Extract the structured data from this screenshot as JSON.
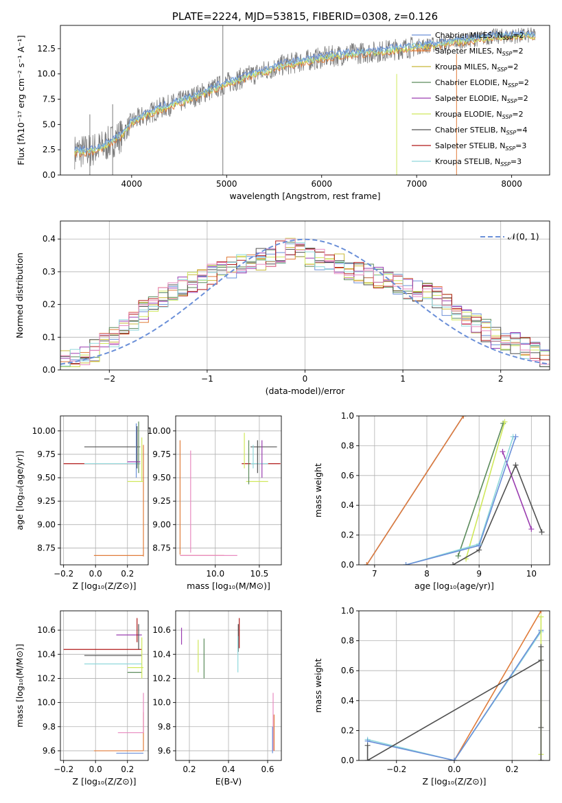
{
  "colors": {
    "chabrier_miles": "#6a8fd8",
    "salpeter_miles": "#e07b39",
    "kroupa_miles": "#c8b838",
    "chabrier_elodie": "#5a8a5a",
    "salpeter_elodie": "#9a3cb0",
    "kroupa_elodie": "#cfe85a",
    "chabrier_stelib": "#505050",
    "salpeter_stelib": "#b01818",
    "kroupa_stelib": "#8fd8dc",
    "pink": "#e88ac0",
    "data": "#7a7a7a"
  },
  "chart_data": [
    {
      "id": "spectrum",
      "type": "line",
      "title": "PLATE=2224, MJD=53815, FIBERID=0308, z=0.126",
      "xlabel": "wavelength [Angstrom, rest frame]",
      "ylabel": "Flux [fλ10⁻¹⁷ erg cm⁻² s⁻¹ A⁻¹]",
      "xlim": [
        3250,
        8400
      ],
      "ylim": [
        0,
        14.8
      ],
      "xticks": [
        4000,
        5000,
        6000,
        7000,
        8000
      ],
      "yticks": [
        0.0,
        2.5,
        5.0,
        7.5,
        10.0,
        12.5
      ],
      "grid": false,
      "legend_position": "top-right",
      "legend": [
        {
          "label": "Chabrier MILES, N",
          "sub": "SSP",
          "post": "=2",
          "color_key": "chabrier_miles"
        },
        {
          "label": "Salpeter MILES, N",
          "sub": "SSP",
          "post": "=2",
          "color_key": "salpeter_miles"
        },
        {
          "label": "Kroupa MILES, N",
          "sub": "SSP",
          "post": "=2",
          "color_key": "kroupa_miles"
        },
        {
          "label": "Chabrier ELODIE, N",
          "sub": "SSP",
          "post": "=2",
          "color_key": "chabrier_elodie"
        },
        {
          "label": "Salpeter ELODIE, N",
          "sub": "SSP",
          "post": "=2",
          "color_key": "salpeter_elodie"
        },
        {
          "label": "Kroupa ELODIE, N",
          "sub": "SSP",
          "post": "=2",
          "color_key": "kroupa_elodie"
        },
        {
          "label": "Chabrier STELIB, N",
          "sub": "SSP",
          "post": "=4",
          "color_key": "chabrier_stelib"
        },
        {
          "label": "Salpeter STELIB, N",
          "sub": "SSP",
          "post": "=3",
          "color_key": "salpeter_stelib"
        },
        {
          "label": "Kroupa STELIB, N",
          "sub": "SSP",
          "post": "=3",
          "color_key": "kroupa_stelib"
        }
      ],
      "continuum": {
        "x": [
          3400,
          3550,
          3700,
          3900,
          4000,
          4100,
          4300,
          4500,
          4800,
          5000,
          5300,
          5600,
          6000,
          6300,
          6600,
          6900,
          7200,
          7500,
          7800,
          8200
        ],
        "y": [
          2.3,
          2.4,
          2.8,
          4.0,
          5.2,
          5.7,
          6.6,
          7.2,
          8.3,
          9.1,
          10.0,
          10.9,
          11.6,
          12.0,
          12.2,
          12.6,
          12.9,
          13.3,
          13.7,
          13.8
        ]
      }
    },
    {
      "id": "residuals",
      "type": "histogram",
      "xlabel": "(data-model)/error",
      "ylabel": "Normed distribution",
      "xlim": [
        -2.5,
        2.5
      ],
      "ylim": [
        0,
        0.455
      ],
      "xticks": [
        -2,
        -1,
        0,
        1,
        2
      ],
      "yticks": [
        0.0,
        0.1,
        0.2,
        0.3,
        0.4
      ],
      "grid": true,
      "legend_position": "top-right",
      "legend": [
        {
          "label": "𝒩(0, 1)",
          "color_key": "chabrier_miles",
          "style": "dashed"
        }
      ],
      "bin_width": 0.1,
      "profile": [
        0.03,
        0.035,
        0.045,
        0.06,
        0.08,
        0.1,
        0.12,
        0.15,
        0.18,
        0.2,
        0.22,
        0.24,
        0.26,
        0.27,
        0.28,
        0.29,
        0.3,
        0.31,
        0.32,
        0.33,
        0.34,
        0.35,
        0.36,
        0.37,
        0.36,
        0.35,
        0.34,
        0.33,
        0.32,
        0.31,
        0.3,
        0.29,
        0.28,
        0.27,
        0.26,
        0.25,
        0.24,
        0.23,
        0.22,
        0.2,
        0.18,
        0.16,
        0.14,
        0.12,
        0.1,
        0.09,
        0.08,
        0.065,
        0.05,
        0.04
      ]
    },
    {
      "id": "age-vs-Z",
      "type": "scatter",
      "xlabel": "Z [log₁₀(Z/Z⊙)]",
      "ylabel": "age  [log₁₀(age/yr)]",
      "xlim": [
        -0.22,
        0.33
      ],
      "ylim": [
        8.57,
        10.16
      ],
      "xticks": [
        -0.2,
        0.0,
        0.2
      ],
      "yticks": [
        8.75,
        9.0,
        9.25,
        9.5,
        9.75,
        10.0
      ],
      "grid": true,
      "segments": [
        {
          "c": "chabrier_stelib",
          "x": [
            -0.07,
            0.28
          ],
          "y": [
            9.83,
            9.83
          ]
        },
        {
          "c": "salpeter_stelib",
          "x": [
            -0.2,
            0.28
          ],
          "y": [
            9.65,
            9.65
          ]
        },
        {
          "c": "kroupa_stelib",
          "x": [
            -0.07,
            0.28
          ],
          "y": [
            9.65,
            9.65
          ]
        },
        {
          "c": "salpeter_miles",
          "x": [
            -0.01,
            0.3
          ],
          "y": [
            8.67,
            8.67
          ]
        },
        {
          "c": "salpeter_miles",
          "x": [
            0.3,
            0.3
          ],
          "y": [
            8.66,
            9.85
          ]
        },
        {
          "c": "kroupa_elodie",
          "x": [
            0.2,
            0.3
          ],
          "y": [
            9.46,
            9.46
          ]
        },
        {
          "c": "chabrier_miles",
          "x": [
            0.255,
            0.255
          ],
          "y": [
            9.5,
            10.08
          ]
        },
        {
          "c": "chabrier_elodie",
          "x": [
            0.27,
            0.27
          ],
          "y": [
            9.55,
            10.1
          ]
        },
        {
          "c": "salpeter_elodie",
          "x": [
            0.2,
            0.28
          ],
          "y": [
            9.67,
            9.67
          ]
        },
        {
          "c": "kroupa_elodie",
          "x": [
            0.29,
            0.29
          ],
          "y": [
            9.46,
            9.93
          ]
        },
        {
          "c": "chabrier_stelib",
          "x": [
            0.26,
            0.26
          ],
          "y": [
            9.6,
            10.05
          ]
        }
      ]
    },
    {
      "id": "age-vs-mass",
      "type": "scatter",
      "xlabel": "mass [log₁₀(M/M⊙)]",
      "xlim": [
        9.55,
        10.75
      ],
      "ylim": [
        8.57,
        10.16
      ],
      "xticks": [
        10.0,
        10.5
      ],
      "yticks": [
        8.75,
        9.0,
        9.25,
        9.5,
        9.75,
        10.0
      ],
      "grid": true,
      "segments": [
        {
          "c": "salpeter_miles",
          "x": [
            9.6,
            9.6
          ],
          "y": [
            8.68,
            9.9
          ]
        },
        {
          "c": "salpeter_miles",
          "x": [
            9.6,
            10.1
          ],
          "y": [
            8.67,
            8.67
          ]
        },
        {
          "c": "pink",
          "x": [
            9.6,
            10.25
          ],
          "y": [
            8.67,
            8.67
          ]
        },
        {
          "c": "pink",
          "x": [
            9.72,
            9.72
          ],
          "y": [
            8.7,
            9.79
          ]
        },
        {
          "c": "chabrier_stelib",
          "x": [
            10.4,
            10.7
          ],
          "y": [
            9.83,
            9.83
          ]
        },
        {
          "c": "salpeter_stelib",
          "x": [
            10.3,
            10.74
          ],
          "y": [
            9.65,
            9.65
          ]
        },
        {
          "c": "kroupa_stelib",
          "x": [
            10.4,
            10.6
          ],
          "y": [
            9.65,
            9.65
          ]
        },
        {
          "c": "kroupa_elodie",
          "x": [
            10.35,
            10.6
          ],
          "y": [
            9.46,
            9.46
          ]
        },
        {
          "c": "chabrier_elodie",
          "x": [
            10.38,
            10.38
          ],
          "y": [
            9.43,
            9.9
          ]
        },
        {
          "c": "salpeter_elodie",
          "x": [
            10.53,
            10.53
          ],
          "y": [
            9.5,
            9.9
          ]
        },
        {
          "c": "kroupa_elodie",
          "x": [
            10.33,
            10.33
          ],
          "y": [
            9.6,
            9.98
          ]
        },
        {
          "c": "chabrier_stelib",
          "x": [
            10.48,
            10.48
          ],
          "y": [
            9.55,
            9.9
          ]
        },
        {
          "c": "kroupa_stelib",
          "x": [
            10.43,
            10.43
          ],
          "y": [
            9.6,
            9.85
          ]
        }
      ]
    },
    {
      "id": "mass-weight-vs-age",
      "type": "line",
      "xlabel": "age  [log₁₀(age/yr)]",
      "ylabel": "mass weight",
      "xlim": [
        6.7,
        10.35
      ],
      "ylim": [
        0,
        1.0
      ],
      "xticks": [
        7,
        8,
        9,
        10
      ],
      "yticks": [
        0.0,
        0.2,
        0.4,
        0.6,
        0.8,
        1.0
      ],
      "grid": true,
      "series": [
        {
          "c": "chabrier_miles",
          "x": [
            6.85,
            8.7
          ],
          "y": [
            0.0,
            1.0
          ]
        },
        {
          "c": "salpeter_miles",
          "x": [
            6.85,
            8.7
          ],
          "y": [
            0.0,
            1.0
          ]
        },
        {
          "c": "chabrier_elodie",
          "x": [
            8.6,
            9.46
          ],
          "y": [
            0.06,
            0.95
          ]
        },
        {
          "c": "kroupa_elodie",
          "x": [
            8.75,
            9.49
          ],
          "y": [
            0.04,
            0.96
          ]
        },
        {
          "c": "salpeter_elodie",
          "x": [
            9.45,
            10.0
          ],
          "y": [
            0.76,
            0.24
          ]
        },
        {
          "c": "chabrier_stelib",
          "x": [
            8.5,
            9.0,
            9.7,
            10.2
          ],
          "y": [
            0.0,
            0.1,
            0.67,
            0.22
          ]
        },
        {
          "c": "kroupa_stelib",
          "x": [
            7.6,
            9.0,
            9.65
          ],
          "y": [
            0.0,
            0.14,
            0.86
          ]
        },
        {
          "c": "chabrier_miles",
          "x": [
            7.6,
            9.0,
            9.7
          ],
          "y": [
            0.0,
            0.13,
            0.86
          ]
        }
      ]
    },
    {
      "id": "mass-vs-Z",
      "type": "scatter",
      "xlabel": "Z [log₁₀(Z/Z⊙)]",
      "ylabel": "mass [log₁₀(M/M⊙)]",
      "xlim": [
        -0.22,
        0.33
      ],
      "ylim": [
        9.52,
        10.76
      ],
      "xticks": [
        -0.2,
        0.0,
        0.2
      ],
      "yticks": [
        9.6,
        9.8,
        10.0,
        10.2,
        10.4,
        10.6
      ],
      "grid": true,
      "segments": [
        {
          "c": "salpeter_stelib",
          "x": [
            -0.2,
            0.29
          ],
          "y": [
            10.44,
            10.44
          ]
        },
        {
          "c": "chabrier_stelib",
          "x": [
            -0.07,
            0.29
          ],
          "y": [
            10.39,
            10.39
          ]
        },
        {
          "c": "kroupa_stelib",
          "x": [
            -0.07,
            0.29
          ],
          "y": [
            10.32,
            10.32
          ]
        },
        {
          "c": "salpeter_miles",
          "x": [
            -0.01,
            0.3
          ],
          "y": [
            9.6,
            9.6
          ]
        },
        {
          "c": "salpeter_miles",
          "x": [
            0.3,
            0.3
          ],
          "y": [
            9.6,
            9.92
          ]
        },
        {
          "c": "chabrier_miles",
          "x": [
            0.13,
            0.3
          ],
          "y": [
            9.58,
            9.58
          ]
        },
        {
          "c": "pink",
          "x": [
            0.14,
            0.3
          ],
          "y": [
            9.75,
            9.75
          ]
        },
        {
          "c": "pink",
          "x": [
            0.3,
            0.3
          ],
          "y": [
            9.75,
            10.08
          ]
        },
        {
          "c": "salpeter_elodie",
          "x": [
            0.13,
            0.29
          ],
          "y": [
            10.56,
            10.56
          ]
        },
        {
          "c": "chabrier_elodie",
          "x": [
            0.2,
            0.29
          ],
          "y": [
            10.25,
            10.25
          ]
        },
        {
          "c": "kroupa_elodie",
          "x": [
            0.2,
            0.3
          ],
          "y": [
            10.29,
            10.29
          ]
        },
        {
          "c": "salpeter_stelib",
          "x": [
            0.26,
            0.26
          ],
          "y": [
            10.5,
            10.7
          ]
        },
        {
          "c": "chabrier_stelib",
          "x": [
            0.27,
            0.27
          ],
          "y": [
            10.44,
            10.65
          ]
        },
        {
          "c": "kroupa_elodie",
          "x": [
            0.29,
            0.29
          ],
          "y": [
            10.2,
            10.54
          ]
        }
      ]
    },
    {
      "id": "mass-vs-EBV",
      "type": "scatter",
      "xlabel": "E(B-V)",
      "xlim": [
        0.13,
        0.67
      ],
      "ylim": [
        9.52,
        10.76
      ],
      "xticks": [
        0.2,
        0.4,
        0.6
      ],
      "yticks": [
        9.6,
        9.8,
        10.0,
        10.2,
        10.4,
        10.6
      ],
      "grid": true,
      "segments": [
        {
          "c": "salpeter_elodie",
          "x": [
            0.16,
            0.16
          ],
          "y": [
            10.48,
            10.62
          ]
        },
        {
          "c": "kroupa_elodie",
          "x": [
            0.245,
            0.245
          ],
          "y": [
            10.25,
            10.52
          ]
        },
        {
          "c": "chabrier_elodie",
          "x": [
            0.275,
            0.275
          ],
          "y": [
            10.2,
            10.53
          ]
        },
        {
          "c": "salpeter_stelib",
          "x": [
            0.455,
            0.455
          ],
          "y": [
            10.45,
            10.7
          ]
        },
        {
          "c": "chabrier_stelib",
          "x": [
            0.45,
            0.45
          ],
          "y": [
            10.42,
            10.65
          ]
        },
        {
          "c": "kroupa_stelib",
          "x": [
            0.448,
            0.448
          ],
          "y": [
            10.25,
            10.55
          ]
        },
        {
          "c": "pink",
          "x": [
            0.628,
            0.628
          ],
          "y": [
            9.6,
            10.08
          ]
        },
        {
          "c": "salpeter_miles",
          "x": [
            0.633,
            0.633
          ],
          "y": [
            9.6,
            9.9
          ]
        },
        {
          "c": "chabrier_miles",
          "x": [
            0.625,
            0.625
          ],
          "y": [
            9.58,
            9.8
          ]
        }
      ]
    },
    {
      "id": "mass-weight-vs-Z",
      "type": "line",
      "xlabel": "Z [log₁₀(Z/Z⊙)]",
      "ylabel": "mass weight",
      "xlim": [
        -0.33,
        0.33
      ],
      "ylim": [
        0,
        1.0
      ],
      "xticks": [
        -0.2,
        0.0,
        0.2
      ],
      "yticks": [
        0.0,
        0.2,
        0.4,
        0.6,
        0.8,
        1.0
      ],
      "grid": true,
      "series": [
        {
          "c": "salpeter_miles",
          "x": [
            0.0,
            0.3
          ],
          "y": [
            0.0,
            1.0
          ]
        },
        {
          "c": "kroupa_stelib",
          "x": [
            -0.3,
            0.0,
            0.3
          ],
          "y": [
            0.14,
            0.0,
            0.86
          ]
        },
        {
          "c": "chabrier_miles",
          "x": [
            -0.3,
            0.0,
            0.3
          ],
          "y": [
            0.13,
            0.0,
            0.87
          ]
        },
        {
          "c": "chabrier_stelib",
          "x": [
            -0.3,
            -0.3,
            0.3,
            0.3
          ],
          "y": [
            0.1,
            0.0,
            0.67,
            0.22
          ]
        },
        {
          "c": "kroupa_elodie",
          "x": [
            0.3,
            0.3
          ],
          "y": [
            0.04,
            0.96
          ]
        },
        {
          "c": "chabrier_stelib",
          "x": [
            0.3,
            0.3
          ],
          "y": [
            0.0,
            0.76
          ]
        }
      ]
    }
  ]
}
